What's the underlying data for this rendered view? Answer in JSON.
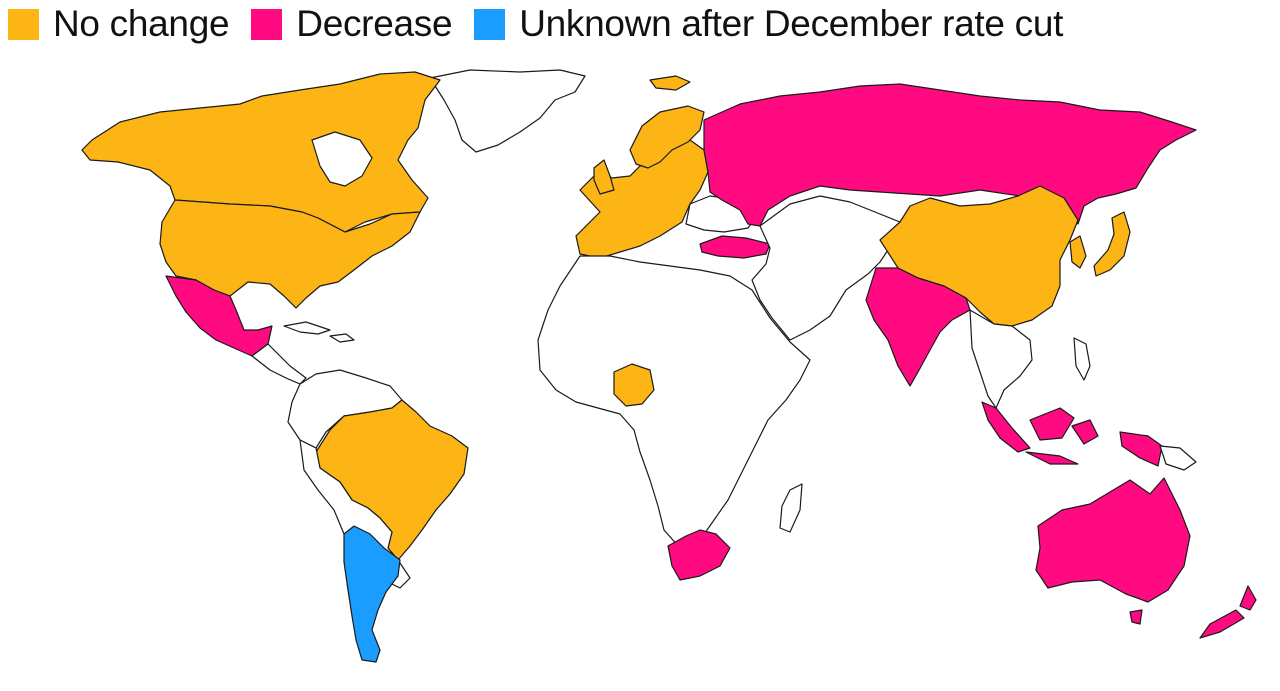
{
  "legend": [
    {
      "label": "No change",
      "color": "#FDB515",
      "key": "no-change"
    },
    {
      "label": "Decrease",
      "color": "#FF0A80",
      "key": "decrease"
    },
    {
      "label": "Unknown after December rate cut",
      "color": "#1A9DFF",
      "key": "unknown"
    }
  ],
  "colors": {
    "no_change": "#FDB515",
    "decrease": "#FF0A80",
    "unknown": "#1A9DFF",
    "no_data": "#FFFFFF",
    "border": "#1A1A1A"
  }
}
